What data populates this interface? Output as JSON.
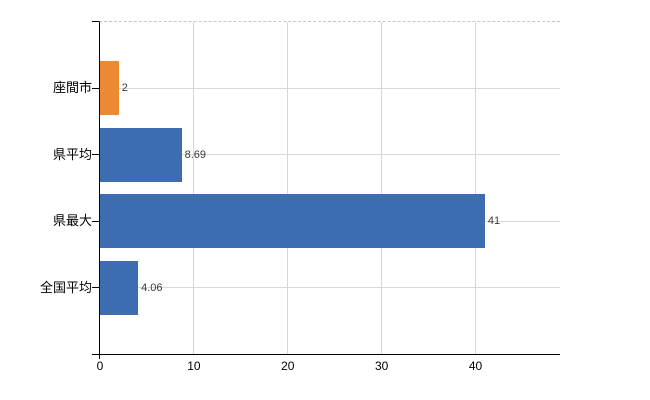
{
  "chart_data": {
    "type": "bar",
    "orientation": "horizontal",
    "title": "",
    "xlabel": "",
    "ylabel": "",
    "categories": [
      "座間市",
      "県平均",
      "県最大",
      "全国平均"
    ],
    "values": [
      2,
      8.69,
      41,
      4.06
    ],
    "value_labels": [
      "2",
      "8.69",
      "41",
      "4.06"
    ],
    "bar_colors": [
      "#eb8a33",
      "#3c6db0",
      "#3c6db0",
      "#3c6db0"
    ],
    "xlim": [
      0,
      49
    ],
    "x_ticks": [
      0,
      10,
      20,
      30,
      40
    ],
    "x_tick_labels": [
      "0",
      "10",
      "20",
      "30",
      "40"
    ],
    "grid": true,
    "legend": false
  },
  "colors": {
    "background": "#ffffff",
    "axis_line": "#000000",
    "horizontal_gridline": "#d3dcd3",
    "vertical_gridline": "#d7d7d7",
    "top_border_dashed": "#ccc4c4",
    "value_label_text": "#3a3a3a",
    "tick_label_text": "#000000"
  }
}
